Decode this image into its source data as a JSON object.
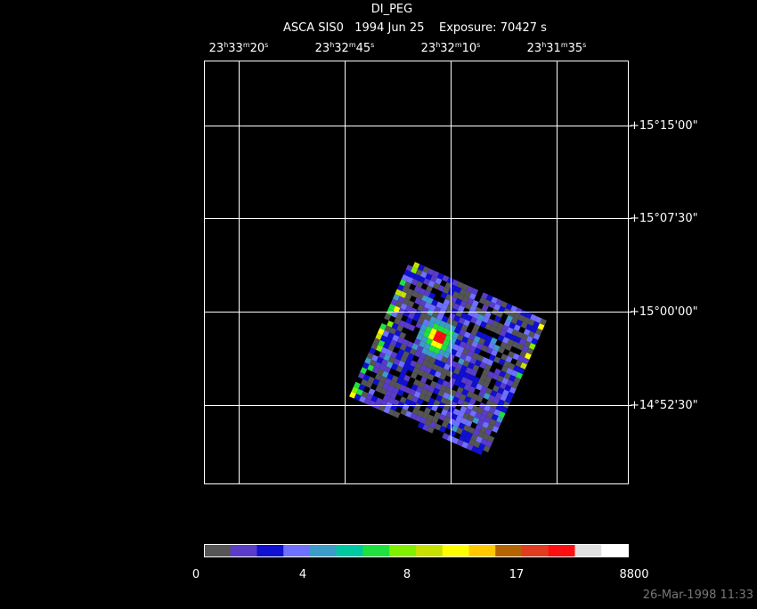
{
  "header": {
    "title": "DI_PEG",
    "subtitle": "ASCA SIS0   1994 Jun 25    Exposure: 70427 s"
  },
  "ra_labels": [
    [
      "23",
      "h",
      "33",
      "m",
      "20",
      "s"
    ],
    [
      "23",
      "h",
      "32",
      "m",
      "45",
      "s"
    ],
    [
      "23",
      "h",
      "32",
      "m",
      "10",
      "s"
    ],
    [
      "23",
      "h",
      "31",
      "m",
      "35",
      "s"
    ]
  ],
  "dec_labels": [
    "+15°15'00\"",
    "+15°07'30\"",
    "+15°00'00\"",
    "+14°52'30\""
  ],
  "colorbar": {
    "colors": [
      "#555555",
      "#5a3cc8",
      "#1010d0",
      "#7070ff",
      "#3c9cc8",
      "#00c8a0",
      "#20e040",
      "#80f000",
      "#c8e000",
      "#ffff00",
      "#ffc800",
      "#b46400",
      "#e03c20",
      "#ff1010",
      "#e0e0e0",
      "#ffffff"
    ],
    "labels": [
      "0",
      "4",
      "8",
      "17",
      "8800"
    ]
  },
  "timestamp": "26-Mar-1998 11:33"
}
